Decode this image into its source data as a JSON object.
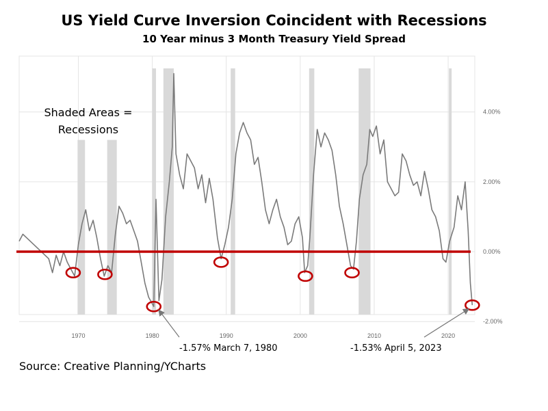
{
  "title": "US Yield Curve Inversion Coincident with Recessions",
  "subtitle": "10 Year minus 3 Month Treasury Yield Spread",
  "source": "Source: Creative Planning/YCharts",
  "chart_data": {
    "type": "line",
    "x_range": [
      1962,
      2023.6
    ],
    "y_range": [
      -1.8,
      5.6
    ],
    "x_ticks": [
      1970,
      1980,
      1990,
      2000,
      2010,
      2020
    ],
    "y_ticks": [
      4,
      2,
      0,
      -2
    ],
    "y_tick_labels": [
      "4.00%",
      "2.00%",
      "0.00%",
      "-2.00%"
    ],
    "grid": true,
    "colors": {
      "line": "#7a7a7a",
      "zero_line": "#c00000",
      "markers": "#c00000",
      "recession": "#d9d9d9",
      "grid": "#e4e4e4"
    },
    "recessions": [
      [
        1969.9,
        1970.9
      ],
      [
        1973.9,
        1975.2
      ],
      [
        1980.0,
        1980.5
      ],
      [
        1981.5,
        1982.9
      ],
      [
        1990.6,
        1991.2
      ],
      [
        2001.2,
        2001.9
      ],
      [
        2007.9,
        2009.5
      ],
      [
        2020.1,
        2020.3
      ]
    ],
    "annotation_text": "Shaded Areas =\nRecessions",
    "series": [
      {
        "values": [
          [
            1962.0,
            0.3
          ],
          [
            1962.5,
            0.5
          ],
          [
            1963.0,
            0.4
          ],
          [
            1963.5,
            0.3
          ],
          [
            1964.0,
            0.2
          ],
          [
            1964.5,
            0.1
          ],
          [
            1965.0,
            0.0
          ],
          [
            1965.5,
            -0.1
          ],
          [
            1966.0,
            -0.2
          ],
          [
            1966.5,
            -0.6
          ],
          [
            1967.0,
            -0.1
          ],
          [
            1967.5,
            -0.4
          ],
          [
            1968.0,
            0.0
          ],
          [
            1968.5,
            -0.3
          ],
          [
            1969.0,
            -0.5
          ],
          [
            1969.5,
            -0.7
          ],
          [
            1970.0,
            0.2
          ],
          [
            1970.5,
            0.8
          ],
          [
            1971.0,
            1.2
          ],
          [
            1971.5,
            0.6
          ],
          [
            1972.0,
            0.9
          ],
          [
            1972.5,
            0.4
          ],
          [
            1973.0,
            -0.2
          ],
          [
            1973.5,
            -0.7
          ],
          [
            1974.0,
            -0.4
          ],
          [
            1974.5,
            -0.6
          ],
          [
            1975.0,
            0.5
          ],
          [
            1975.5,
            1.3
          ],
          [
            1976.0,
            1.1
          ],
          [
            1976.5,
            0.8
          ],
          [
            1977.0,
            0.9
          ],
          [
            1977.5,
            0.6
          ],
          [
            1978.0,
            0.3
          ],
          [
            1978.5,
            -0.3
          ],
          [
            1979.0,
            -0.9
          ],
          [
            1979.5,
            -1.3
          ],
          [
            1980.2,
            -1.57
          ],
          [
            1980.5,
            1.5
          ],
          [
            1980.9,
            -1.4
          ],
          [
            1981.3,
            -0.8
          ],
          [
            1981.8,
            1.0
          ],
          [
            1982.3,
            2.0
          ],
          [
            1982.7,
            3.0
          ],
          [
            1982.9,
            5.1
          ],
          [
            1983.2,
            2.8
          ],
          [
            1983.7,
            2.2
          ],
          [
            1984.2,
            1.8
          ],
          [
            1984.7,
            2.8
          ],
          [
            1985.2,
            2.6
          ],
          [
            1985.7,
            2.4
          ],
          [
            1986.2,
            1.8
          ],
          [
            1986.7,
            2.2
          ],
          [
            1987.2,
            1.4
          ],
          [
            1987.7,
            2.1
          ],
          [
            1988.2,
            1.5
          ],
          [
            1988.8,
            0.4
          ],
          [
            1989.3,
            -0.2
          ],
          [
            1989.8,
            0.2
          ],
          [
            1990.3,
            0.7
          ],
          [
            1990.8,
            1.5
          ],
          [
            1991.3,
            2.8
          ],
          [
            1991.8,
            3.4
          ],
          [
            1992.3,
            3.7
          ],
          [
            1992.8,
            3.4
          ],
          [
            1993.3,
            3.2
          ],
          [
            1993.8,
            2.5
          ],
          [
            1994.3,
            2.7
          ],
          [
            1994.8,
            2.0
          ],
          [
            1995.3,
            1.2
          ],
          [
            1995.8,
            0.8
          ],
          [
            1996.3,
            1.2
          ],
          [
            1996.8,
            1.5
          ],
          [
            1997.3,
            1.0
          ],
          [
            1997.8,
            0.7
          ],
          [
            1998.3,
            0.2
          ],
          [
            1998.8,
            0.3
          ],
          [
            1999.3,
            0.8
          ],
          [
            1999.8,
            1.0
          ],
          [
            2000.3,
            0.4
          ],
          [
            2000.6,
            -0.6
          ],
          [
            2001.0,
            -0.4
          ],
          [
            2001.3,
            0.4
          ],
          [
            2001.8,
            2.2
          ],
          [
            2002.3,
            3.5
          ],
          [
            2002.8,
            3.0
          ],
          [
            2003.3,
            3.4
          ],
          [
            2003.8,
            3.2
          ],
          [
            2004.3,
            2.9
          ],
          [
            2004.8,
            2.2
          ],
          [
            2005.3,
            1.3
          ],
          [
            2005.8,
            0.8
          ],
          [
            2006.3,
            0.2
          ],
          [
            2006.8,
            -0.4
          ],
          [
            2007.2,
            -0.5
          ],
          [
            2007.6,
            0.3
          ],
          [
            2008.0,
            1.5
          ],
          [
            2008.5,
            2.2
          ],
          [
            2009.0,
            2.5
          ],
          [
            2009.4,
            3.5
          ],
          [
            2009.8,
            3.3
          ],
          [
            2010.3,
            3.6
          ],
          [
            2010.8,
            2.8
          ],
          [
            2011.3,
            3.2
          ],
          [
            2011.8,
            2.0
          ],
          [
            2012.3,
            1.8
          ],
          [
            2012.8,
            1.6
          ],
          [
            2013.3,
            1.7
          ],
          [
            2013.8,
            2.8
          ],
          [
            2014.3,
            2.6
          ],
          [
            2014.8,
            2.2
          ],
          [
            2015.3,
            1.9
          ],
          [
            2015.8,
            2.0
          ],
          [
            2016.3,
            1.6
          ],
          [
            2016.8,
            2.3
          ],
          [
            2017.3,
            1.8
          ],
          [
            2017.8,
            1.2
          ],
          [
            2018.3,
            1.0
          ],
          [
            2018.8,
            0.6
          ],
          [
            2019.3,
            -0.2
          ],
          [
            2019.7,
            -0.3
          ],
          [
            2020.2,
            0.3
          ],
          [
            2020.8,
            0.7
          ],
          [
            2021.3,
            1.6
          ],
          [
            2021.8,
            1.2
          ],
          [
            2022.3,
            2.0
          ],
          [
            2022.7,
            0.6
          ],
          [
            2023.0,
            -0.9
          ],
          [
            2023.26,
            -1.53
          ]
        ]
      }
    ],
    "circled_inversions": [
      [
        1969.3,
        -0.6
      ],
      [
        1973.6,
        -0.65
      ],
      [
        1980.2,
        -1.57
      ],
      [
        1989.3,
        -0.3
      ],
      [
        2000.7,
        -0.7
      ],
      [
        2007.0,
        -0.6
      ],
      [
        2023.26,
        -1.53
      ]
    ],
    "callouts": [
      {
        "x": 1980.2,
        "y": -1.57,
        "text": "-1.57%  March 7, 1980"
      },
      {
        "x": 2023.26,
        "y": -1.53,
        "text": "-1.53%  April 5, 2023"
      }
    ]
  }
}
